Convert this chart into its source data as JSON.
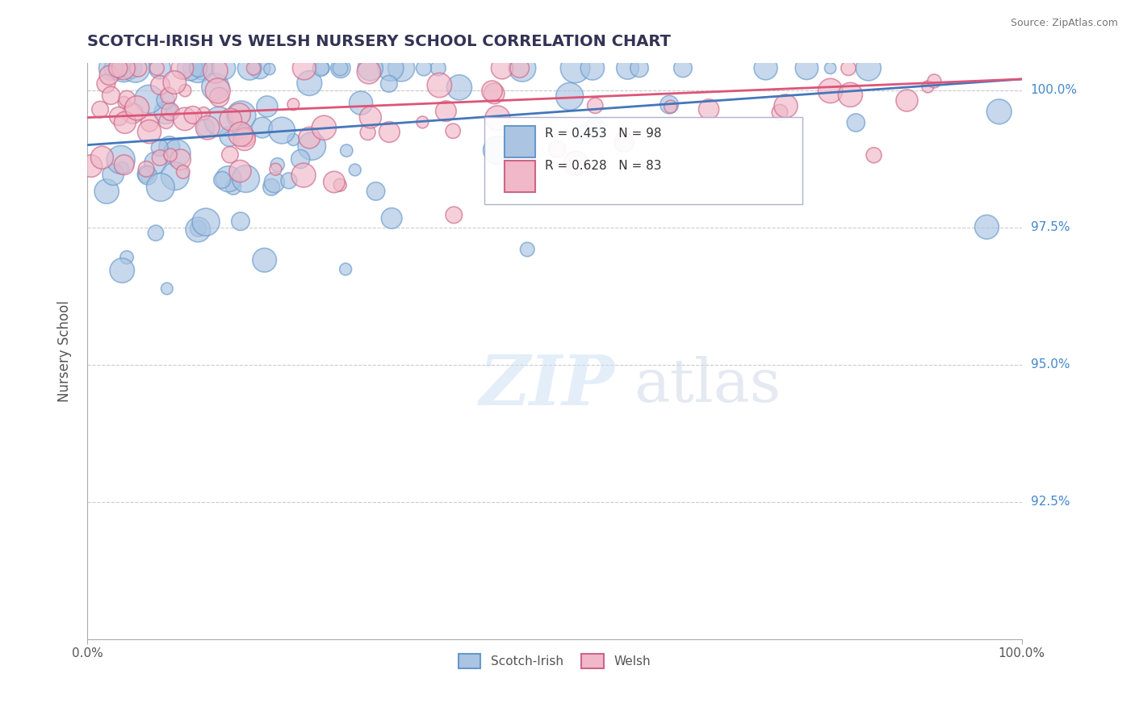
{
  "title": "SCOTCH-IRISH VS WELSH NURSERY SCHOOL CORRELATION CHART",
  "source": "Source: ZipAtlas.com",
  "ylabel": "Nursery School",
  "ymax": 100.5,
  "ymin": 90.0,
  "xmin": 0.0,
  "xmax": 100.0,
  "blue_R": 0.453,
  "blue_N": 98,
  "pink_R": 0.628,
  "pink_N": 83,
  "blue_color": "#aac4e2",
  "blue_edge": "#6699cc",
  "pink_color": "#f0b8c8",
  "pink_edge": "#cc6688",
  "blue_line_color": "#4477bb",
  "pink_line_color": "#dd5577",
  "legend_label_blue": "Scotch-Irish",
  "legend_label_pink": "Welsh",
  "watermark_zip": "ZIP",
  "watermark_atlas": "atlas",
  "background_color": "#ffffff",
  "grid_color": "#cccccc",
  "title_color": "#333355",
  "right_yticks": [
    100.0,
    97.5,
    95.0,
    92.5
  ],
  "right_ytick_labels": [
    "100.0%",
    "97.5%",
    "95.0%",
    "92.5%"
  ]
}
